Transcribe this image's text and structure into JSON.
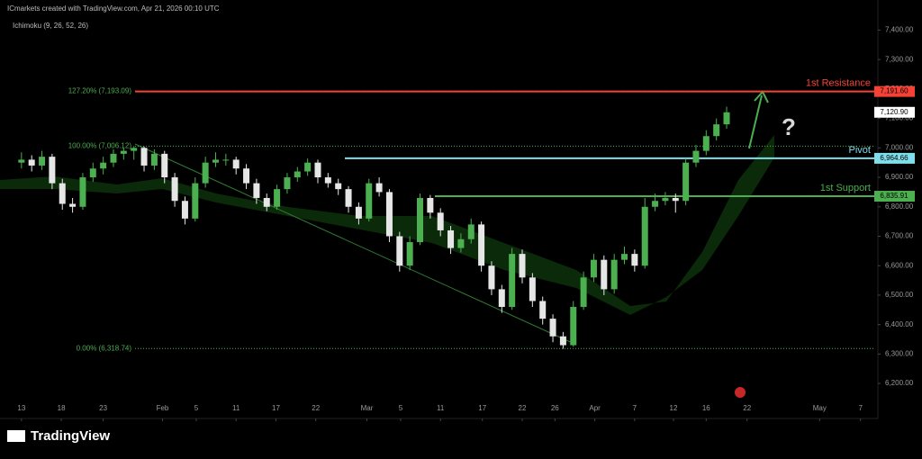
{
  "header": "ICmarkets created with TradingView.com, Apr 21, 2026 00:10 UTC",
  "indicator": "Ichimoku (9, 26, 52, 26)",
  "brand": "TradingView",
  "question": "?",
  "chart_data": {
    "type": "candlestick",
    "xlim": [
      -2.1,
      83.8
    ],
    "xticks": [
      {
        "value": 0,
        "label": "13"
      },
      {
        "value": 3.9,
        "label": "18"
      },
      {
        "value": 8,
        "label": "23"
      },
      {
        "value": 13.8,
        "label": "Feb"
      },
      {
        "value": 17.1,
        "label": "5"
      },
      {
        "value": 21,
        "label": "11"
      },
      {
        "value": 24.9,
        "label": "17"
      },
      {
        "value": 28.8,
        "label": "22"
      },
      {
        "value": 33.8,
        "label": "Mar"
      },
      {
        "value": 37.1,
        "label": "5"
      },
      {
        "value": 41,
        "label": "11"
      },
      {
        "value": 45.1,
        "label": "17"
      },
      {
        "value": 49,
        "label": "22"
      },
      {
        "value": 52.2,
        "label": "26"
      },
      {
        "value": 56.1,
        "label": "Apr"
      },
      {
        "value": 60,
        "label": "7"
      },
      {
        "value": 63.8,
        "label": "12"
      },
      {
        "value": 67,
        "label": "16"
      },
      {
        "value": 71,
        "label": "22"
      },
      {
        "value": 78.1,
        "label": "May"
      },
      {
        "value": 82.1,
        "label": "7"
      }
    ],
    "ylim": [
      6130,
      7490
    ],
    "yticks": [
      {
        "value": 6200,
        "label": "6,200.00"
      },
      {
        "value": 6300,
        "label": "6,300.00"
      },
      {
        "value": 6400,
        "label": "6,400.00"
      },
      {
        "value": 6500,
        "label": "6,500.00"
      },
      {
        "value": 6600,
        "label": "6,600.00"
      },
      {
        "value": 6700,
        "label": "6,700.00"
      },
      {
        "value": 6800,
        "label": "6,800.00"
      },
      {
        "value": 6900,
        "label": "6,900.00"
      },
      {
        "value": 7000,
        "label": "7,000.00"
      },
      {
        "value": 7100,
        "label": "7,100.00"
      },
      {
        "value": 7200,
        "label": "7,200.00"
      },
      {
        "value": 7300,
        "label": "7,300.00"
      },
      {
        "value": 7400,
        "label": "7,400.00"
      }
    ],
    "up_color": "#4caf50",
    "down_color": "#e6e6e6",
    "candles": [
      [
        6950,
        6985,
        6930,
        6960
      ],
      [
        6960,
        6975,
        6920,
        6940
      ],
      [
        6940,
        6990,
        6925,
        6970
      ],
      [
        6970,
        6980,
        6860,
        6880
      ],
      [
        6880,
        6895,
        6790,
        6810
      ],
      [
        6810,
        6830,
        6780,
        6800
      ],
      [
        6800,
        6915,
        6790,
        6900
      ],
      [
        6900,
        6950,
        6885,
        6930
      ],
      [
        6930,
        6970,
        6910,
        6950
      ],
      [
        6950,
        6995,
        6935,
        6980
      ],
      [
        6980,
        7000,
        6960,
        6990
      ],
      [
        6990,
        7006,
        6960,
        7000
      ],
      [
        7000,
        7005,
        6920,
        6940
      ],
      [
        6940,
        6995,
        6925,
        6980
      ],
      [
        6980,
        6990,
        6880,
        6900
      ],
      [
        6900,
        6915,
        6800,
        6820
      ],
      [
        6820,
        6835,
        6740,
        6760
      ],
      [
        6760,
        6900,
        6750,
        6880
      ],
      [
        6880,
        6970,
        6865,
        6950
      ],
      [
        6950,
        6985,
        6935,
        6960
      ],
      [
        6960,
        6980,
        6940,
        6960
      ],
      [
        6960,
        6970,
        6910,
        6930
      ],
      [
        6930,
        6945,
        6860,
        6880
      ],
      [
        6880,
        6895,
        6810,
        6830
      ],
      [
        6830,
        6845,
        6785,
        6800
      ],
      [
        6800,
        6875,
        6790,
        6860
      ],
      [
        6860,
        6915,
        6845,
        6900
      ],
      [
        6900,
        6935,
        6885,
        6920
      ],
      [
        6920,
        6964,
        6905,
        6950
      ],
      [
        6950,
        6960,
        6880,
        6900
      ],
      [
        6900,
        6915,
        6865,
        6880
      ],
      [
        6880,
        6895,
        6840,
        6860
      ],
      [
        6860,
        6870,
        6780,
        6800
      ],
      [
        6800,
        6815,
        6740,
        6760
      ],
      [
        6760,
        6895,
        6750,
        6880
      ],
      [
        6880,
        6900,
        6835,
        6850
      ],
      [
        6850,
        6860,
        6680,
        6700
      ],
      [
        6700,
        6715,
        6580,
        6600
      ],
      [
        6600,
        6700,
        6585,
        6680
      ],
      [
        6680,
        6845,
        6670,
        6830
      ],
      [
        6830,
        6840,
        6760,
        6780
      ],
      [
        6780,
        6795,
        6700,
        6720
      ],
      [
        6720,
        6735,
        6640,
        6660
      ],
      [
        6660,
        6710,
        6645,
        6690
      ],
      [
        6690,
        6760,
        6675,
        6740
      ],
      [
        6740,
        6750,
        6580,
        6600
      ],
      [
        6600,
        6615,
        6500,
        6520
      ],
      [
        6520,
        6535,
        6440,
        6460
      ],
      [
        6460,
        6660,
        6450,
        6640
      ],
      [
        6640,
        6655,
        6540,
        6560
      ],
      [
        6560,
        6575,
        6460,
        6480
      ],
      [
        6480,
        6495,
        6400,
        6420
      ],
      [
        6420,
        6435,
        6340,
        6360
      ],
      [
        6360,
        6375,
        6318,
        6330
      ],
      [
        6330,
        6480,
        6325,
        6460
      ],
      [
        6460,
        6580,
        6450,
        6560
      ],
      [
        6560,
        6640,
        6545,
        6620
      ],
      [
        6620,
        6635,
        6500,
        6520
      ],
      [
        6520,
        6640,
        6505,
        6620
      ],
      [
        6620,
        6665,
        6605,
        6640
      ],
      [
        6640,
        6655,
        6580,
        6600
      ],
      [
        6600,
        6830,
        6590,
        6800
      ],
      [
        6800,
        6845,
        6785,
        6820
      ],
      [
        6820,
        6850,
        6805,
        6830
      ],
      [
        6830,
        6845,
        6780,
        6820
      ],
      [
        6820,
        6965,
        6805,
        6950
      ],
      [
        6950,
        7010,
        6935,
        6990
      ],
      [
        6990,
        7060,
        6975,
        7040
      ],
      [
        7040,
        7100,
        7025,
        7080
      ],
      [
        7080,
        7140,
        7065,
        7120.9
      ]
    ],
    "last_price": {
      "value": 7120.9,
      "label": "7,120.90"
    },
    "fib_levels": [
      {
        "value": 7193.09,
        "label": "127.20% (7,193.09)"
      },
      {
        "value": 7006.12,
        "label": "100.00% (7,006.12)"
      },
      {
        "value": 6318.74,
        "label": "0.00% (6,318.74)"
      }
    ],
    "levels": [
      {
        "name": "1st Resistance",
        "value": 7191.6,
        "value_label": "7,191.60",
        "color": "#f44336"
      },
      {
        "name": "Pivot",
        "value": 6964.66,
        "value_label": "6,964.66",
        "color": "#80deea"
      },
      {
        "name": "1st Support",
        "value": 6835.91,
        "value_label": "6,835.91",
        "color": "#4caf50"
      }
    ]
  }
}
